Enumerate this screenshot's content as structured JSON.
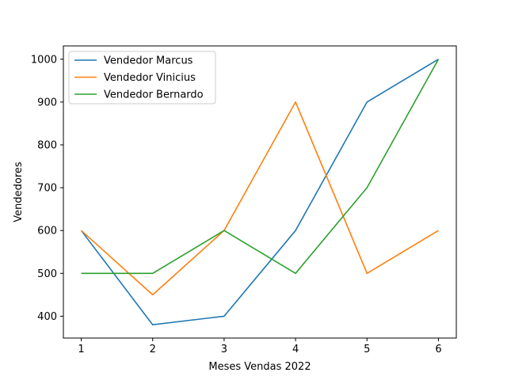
{
  "chart_data": {
    "type": "line",
    "title": "",
    "xlabel": "Meses Vendas 2022",
    "ylabel": "Vendedores",
    "x": [
      1,
      2,
      3,
      4,
      5,
      6
    ],
    "x_ticks": [
      1,
      2,
      3,
      4,
      5,
      6
    ],
    "y_ticks": [
      400,
      500,
      600,
      700,
      800,
      900,
      1000
    ],
    "xlim": [
      0.75,
      6.25
    ],
    "ylim": [
      349,
      1031
    ],
    "grid": false,
    "legend_position": "upper-left",
    "series": [
      {
        "name": "Vendedor Marcus",
        "color": "#1f77b4",
        "values": [
          600,
          380,
          400,
          600,
          900,
          1000
        ]
      },
      {
        "name": "Vendedor Vinicius",
        "color": "#ff7f0e",
        "values": [
          600,
          450,
          600,
          900,
          500,
          600
        ]
      },
      {
        "name": "Vendedor Bernardo",
        "color": "#2ca02c",
        "values": [
          500,
          500,
          600,
          500,
          700,
          1000
        ]
      }
    ]
  }
}
